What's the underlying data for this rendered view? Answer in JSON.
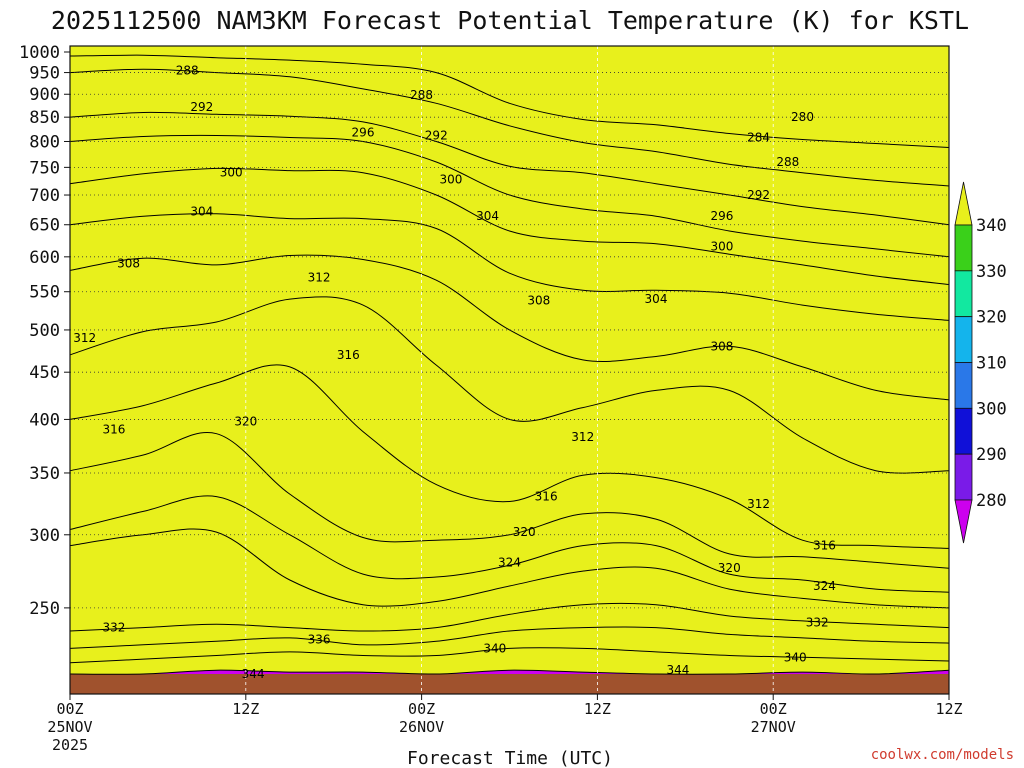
{
  "title": "2025112500 NAM3KM Forecast Potential Temperature (K) for KSTL",
  "credit": "coolwx.com/models",
  "chart_data": {
    "type": "heatmap",
    "title": "2025112500 NAM3KM Forecast Potential Temperature (K) for KSTL",
    "xlabel": "Forecast Time (UTC)",
    "ylabel": "",
    "x_ticks": [
      {
        "hour": 0,
        "lines": [
          "00Z",
          "25NOV",
          "2025"
        ]
      },
      {
        "hour": 12,
        "lines": [
          "12Z"
        ]
      },
      {
        "hour": 24,
        "lines": [
          "00Z",
          "26NOV"
        ]
      },
      {
        "hour": 36,
        "lines": [
          "12Z"
        ]
      },
      {
        "hour": 48,
        "lines": [
          "00Z",
          "27NOV"
        ]
      },
      {
        "hour": 60,
        "lines": [
          "12Z"
        ]
      }
    ],
    "xlim": [
      0,
      60
    ],
    "y_ticks": [
      250,
      300,
      350,
      400,
      450,
      500,
      550,
      600,
      650,
      700,
      750,
      800,
      850,
      900,
      950,
      1000
    ],
    "ylim": [
      1000,
      200
    ],
    "y_scale": "log-pressure",
    "grid": true,
    "colorbar": {
      "levels": [
        280,
        290,
        300,
        310,
        320,
        330,
        340
      ],
      "colors": [
        "#cc00ee",
        "#7a1be8",
        "#1010d8",
        "#2a78e8",
        "#14b4ec",
        "#12e8a0",
        "#3ad01a",
        "#e8f01c"
      ],
      "extend": "both"
    },
    "series": [
      {
        "theta": 344,
        "p": [
          212,
          212,
          214,
          213,
          213,
          212,
          214,
          213,
          212,
          212,
          213,
          212,
          214
        ]
      },
      {
        "theta": 340,
        "p": [
          218,
          220,
          222,
          224,
          222,
          222,
          226,
          226,
          224,
          222,
          221,
          220,
          219
        ]
      },
      {
        "theta": 336,
        "p": [
          226,
          228,
          230,
          232,
          228,
          230,
          236,
          238,
          238,
          234,
          232,
          230,
          229
        ]
      },
      {
        "theta": 332,
        "p": [
          236,
          238,
          240,
          238,
          236,
          238,
          246,
          252,
          252,
          245,
          242,
          240,
          238
        ]
      },
      {
        "theta": 328,
        "p": [
          292,
          300,
          302,
          268,
          252,
          254,
          264,
          274,
          276,
          262,
          256,
          252,
          250
        ]
      },
      {
        "theta": 324,
        "p": [
          304,
          318,
          330,
          300,
          272,
          270,
          278,
          292,
          292,
          272,
          268,
          262,
          260
        ]
      },
      {
        "theta": 320,
        "p": [
          352,
          366,
          386,
          332,
          298,
          296,
          300,
          316,
          312,
          286,
          284,
          280,
          276
        ]
      },
      {
        "theta": 316,
        "p": [
          400,
          414,
          438,
          456,
          388,
          340,
          326,
          348,
          346,
          328,
          296,
          292,
          290
        ]
      },
      {
        "theta": 312,
        "p": [
          470,
          498,
          510,
          540,
          532,
          458,
          400,
          412,
          430,
          430,
          382,
          352,
          352
        ]
      },
      {
        "theta": 308,
        "p": [
          580,
          598,
          588,
          602,
          596,
          566,
          500,
          464,
          468,
          480,
          456,
          430,
          420
        ]
      },
      {
        "theta": 304,
        "p": [
          650,
          664,
          668,
          660,
          660,
          644,
          576,
          552,
          552,
          548,
          532,
          520,
          512
        ]
      },
      {
        "theta": 300,
        "p": [
          720,
          738,
          748,
          744,
          740,
          700,
          640,
          624,
          620,
          604,
          588,
          572,
          560
        ]
      },
      {
        "theta": 296,
        "p": [
          800,
          810,
          812,
          808,
          800,
          760,
          700,
          676,
          664,
          640,
          624,
          612,
          600
        ]
      },
      {
        "theta": 292,
        "p": [
          850,
          860,
          856,
          852,
          840,
          800,
          752,
          740,
          720,
          700,
          680,
          666,
          650
        ]
      },
      {
        "theta": 288,
        "p": [
          950,
          958,
          950,
          940,
          912,
          880,
          832,
          798,
          780,
          756,
          740,
          726,
          716
        ]
      },
      {
        "theta": 284,
        "p": [
          990,
          992,
          986,
          980,
          970,
          950,
          880,
          845,
          834,
          816,
          804,
          796,
          788
        ]
      }
    ],
    "x_hours": [
      0,
      5,
      10,
      15,
      20,
      25,
      30,
      35,
      40,
      45,
      50,
      55,
      60
    ],
    "contour_labels": [
      {
        "text": "344",
        "hour": 12.5,
        "p": 212
      },
      {
        "text": "344",
        "hour": 41.5,
        "p": 214
      },
      {
        "text": "340",
        "hour": 29,
        "p": 226
      },
      {
        "text": "340",
        "hour": 49.5,
        "p": 221
      },
      {
        "text": "336",
        "hour": 17,
        "p": 231
      },
      {
        "text": "332",
        "hour": 3,
        "p": 238
      },
      {
        "text": "332",
        "hour": 51,
        "p": 241
      },
      {
        "text": "324",
        "hour": 30,
        "p": 280
      },
      {
        "text": "324",
        "hour": 51.5,
        "p": 264
      },
      {
        "text": "320",
        "hour": 45,
        "p": 276
      },
      {
        "text": "320",
        "hour": 31,
        "p": 302
      },
      {
        "text": "316",
        "hour": 32.5,
        "p": 330
      },
      {
        "text": "316",
        "hour": 51.5,
        "p": 292
      },
      {
        "text": "316",
        "hour": 3,
        "p": 390
      },
      {
        "text": "316",
        "hour": 19,
        "p": 470
      },
      {
        "text": "312",
        "hour": 47,
        "p": 324
      },
      {
        "text": "312",
        "hour": 35,
        "p": 383
      },
      {
        "text": "312",
        "hour": 1,
        "p": 490
      },
      {
        "text": "312",
        "hour": 17,
        "p": 570
      },
      {
        "text": "320",
        "hour": 12,
        "p": 398
      },
      {
        "text": "308",
        "hour": 44.5,
        "p": 480
      },
      {
        "text": "308",
        "hour": 32,
        "p": 538
      },
      {
        "text": "308",
        "hour": 4,
        "p": 590
      },
      {
        "text": "304",
        "hour": 40,
        "p": 540
      },
      {
        "text": "304",
        "hour": 28.5,
        "p": 664
      },
      {
        "text": "304",
        "hour": 9,
        "p": 672
      },
      {
        "text": "300",
        "hour": 44.5,
        "p": 616
      },
      {
        "text": "300",
        "hour": 11,
        "p": 740
      },
      {
        "text": "300",
        "hour": 26,
        "p": 728
      },
      {
        "text": "296",
        "hour": 44.5,
        "p": 664
      },
      {
        "text": "296",
        "hour": 20,
        "p": 818
      },
      {
        "text": "292",
        "hour": 47,
        "p": 700
      },
      {
        "text": "292",
        "hour": 25,
        "p": 812
      },
      {
        "text": "292",
        "hour": 9,
        "p": 872
      },
      {
        "text": "288",
        "hour": 49,
        "p": 760
      },
      {
        "text": "288",
        "hour": 24,
        "p": 898
      },
      {
        "text": "288",
        "hour": 8,
        "p": 955
      },
      {
        "text": "284",
        "hour": 47,
        "p": 808
      },
      {
        "text": "280",
        "hour": 50,
        "p": 850
      }
    ]
  }
}
